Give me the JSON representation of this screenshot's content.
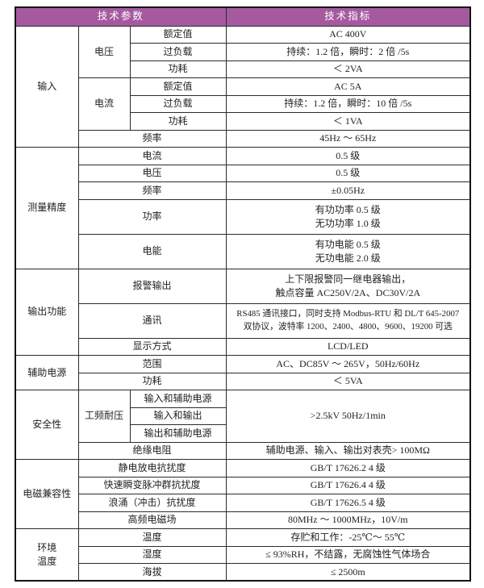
{
  "colors": {
    "header_bg": "#a55a9f",
    "header_fg": "#ffffff",
    "border": "#2b2b2b",
    "text": "#1f1f1f"
  },
  "table": {
    "rows": [
      {
        "header": true,
        "cells": [
          {
            "text": "技术参数",
            "colspan": 3,
            "name": "header-cell-parameters"
          },
          {
            "text": "技术指标",
            "name": "header-cell-specs"
          }
        ]
      },
      {
        "cells": [
          {
            "text": "输入",
            "rowspan": 7,
            "kind": "section"
          },
          {
            "text": "电压",
            "rowspan": 3,
            "kind": "param"
          },
          {
            "text": "额定值",
            "kind": "param"
          },
          {
            "text": "AC 400V",
            "kind": "value"
          }
        ]
      },
      {
        "cells": [
          {
            "text": "过负载",
            "kind": "param"
          },
          {
            "text": "持续：1.2 倍，瞬时：2 倍 /5s",
            "kind": "value"
          }
        ]
      },
      {
        "cells": [
          {
            "text": "功耗",
            "kind": "param"
          },
          {
            "text": "＜ 2VA",
            "kind": "value"
          }
        ]
      },
      {
        "cells": [
          {
            "text": "电流",
            "rowspan": 3,
            "kind": "param"
          },
          {
            "text": "额定值",
            "kind": "param"
          },
          {
            "text": "AC 5A",
            "kind": "value"
          }
        ]
      },
      {
        "cells": [
          {
            "text": "过负载",
            "kind": "param"
          },
          {
            "text": "持续：1.2 倍，瞬时：10 倍 /5s",
            "kind": "value"
          }
        ]
      },
      {
        "cells": [
          {
            "text": "功耗",
            "kind": "param"
          },
          {
            "text": "＜ 1VA",
            "kind": "value"
          }
        ]
      },
      {
        "cells": [
          {
            "text": "频率",
            "colspan": 2,
            "kind": "param"
          },
          {
            "text": "45Hz ～ 65Hz",
            "kind": "value"
          }
        ]
      },
      {
        "cells": [
          {
            "text": "测量精度",
            "rowspan": 5,
            "kind": "section"
          },
          {
            "text": "电流",
            "colspan": 2,
            "kind": "param"
          },
          {
            "text": "0.5 级",
            "kind": "value"
          }
        ]
      },
      {
        "cells": [
          {
            "text": "电压",
            "colspan": 2,
            "kind": "param"
          },
          {
            "text": "0.5 级",
            "kind": "value"
          }
        ]
      },
      {
        "cells": [
          {
            "text": "频率",
            "colspan": 2,
            "kind": "param"
          },
          {
            "text": "±0.05Hz",
            "kind": "value"
          }
        ]
      },
      {
        "tall": true,
        "cells": [
          {
            "text": "功率",
            "colspan": 2,
            "kind": "param"
          },
          {
            "text": "有功功率 0.5 级\n无功功率 1.0 级",
            "kind": "value"
          }
        ]
      },
      {
        "tall": true,
        "cells": [
          {
            "text": "电能",
            "colspan": 2,
            "kind": "param"
          },
          {
            "text": "有功电能 0.5 级\n无功电能 2.0 级",
            "kind": "value"
          }
        ]
      },
      {
        "tall": true,
        "cells": [
          {
            "text": "输出功能",
            "rowspan": 3,
            "kind": "section"
          },
          {
            "text": "报警输出",
            "colspan": 2,
            "kind": "param"
          },
          {
            "text": "上下限报警同一继电器输出，\n触点容量 AC250V/2A、DC30V/2A",
            "kind": "value"
          }
        ]
      },
      {
        "tall": true,
        "cells": [
          {
            "text": "通讯",
            "colspan": 2,
            "kind": "param"
          },
          {
            "text": "RS485 通讯接口，同时支持 Modbus-RTU 和 DL/T 645-2007\n双协议，波特率 1200、2400、4800、9600、19200 可选",
            "kind": "value",
            "small": true
          }
        ]
      },
      {
        "cells": [
          {
            "text": "显示方式",
            "colspan": 2,
            "kind": "param"
          },
          {
            "text": "LCD/LED",
            "kind": "value"
          }
        ]
      },
      {
        "cells": [
          {
            "text": "辅助电源",
            "rowspan": 2,
            "kind": "section"
          },
          {
            "text": "范围",
            "colspan": 2,
            "kind": "param"
          },
          {
            "text": "AC、DC85V ～ 265V，50Hz/60Hz",
            "kind": "value"
          }
        ]
      },
      {
        "cells": [
          {
            "text": "功耗",
            "colspan": 2,
            "kind": "param"
          },
          {
            "text": "＜ 5VA",
            "kind": "value"
          }
        ]
      },
      {
        "cells": [
          {
            "text": "安全性",
            "rowspan": 4,
            "kind": "section"
          },
          {
            "text": "工频耐压",
            "rowspan": 3,
            "kind": "param"
          },
          {
            "text": "输入和辅助电源",
            "kind": "param"
          },
          {
            "text": ">2.5kV 50Hz/1min",
            "rowspan": 3,
            "kind": "value"
          }
        ]
      },
      {
        "cells": [
          {
            "text": "输入和输出",
            "kind": "param"
          }
        ]
      },
      {
        "cells": [
          {
            "text": "输出和辅助电源",
            "kind": "param"
          }
        ]
      },
      {
        "cells": [
          {
            "text": "绝缘电阻",
            "colspan": 2,
            "kind": "param"
          },
          {
            "text": "辅助电源、输入、输出对表壳> 100MΩ",
            "kind": "value"
          }
        ]
      },
      {
        "cells": [
          {
            "text": "电磁兼容性",
            "rowspan": 4,
            "kind": "section"
          },
          {
            "text": "静电放电抗扰度",
            "colspan": 2,
            "kind": "param"
          },
          {
            "text": "GB/T 17626.2 4 级",
            "kind": "value"
          }
        ]
      },
      {
        "cells": [
          {
            "text": "快速瞬变脉冲群抗扰度",
            "colspan": 2,
            "kind": "param"
          },
          {
            "text": "GB/T 17626.4 4 级",
            "kind": "value"
          }
        ]
      },
      {
        "cells": [
          {
            "text": "浪涌（冲击）抗扰度",
            "colspan": 2,
            "kind": "param"
          },
          {
            "text": "GB/T 17626.5 4 级",
            "kind": "value"
          }
        ]
      },
      {
        "cells": [
          {
            "text": "高频电磁场",
            "colspan": 2,
            "kind": "param"
          },
          {
            "text": "80MHz ～ 1000MHz，10V/m",
            "kind": "value"
          }
        ]
      },
      {
        "cells": [
          {
            "text": "环境\n温度",
            "rowspan": 3,
            "kind": "section"
          },
          {
            "text": "温度",
            "colspan": 2,
            "kind": "param"
          },
          {
            "text": "存贮和工作：-25℃～ 55℃",
            "kind": "value"
          }
        ]
      },
      {
        "cells": [
          {
            "text": "湿度",
            "colspan": 2,
            "kind": "param"
          },
          {
            "text": "≤ 93%RH，不结露，无腐蚀性气体场合",
            "kind": "value"
          }
        ]
      },
      {
        "cells": [
          {
            "text": "海拔",
            "colspan": 2,
            "kind": "param"
          },
          {
            "text": "≤ 2500m",
            "kind": "value"
          }
        ]
      }
    ]
  }
}
